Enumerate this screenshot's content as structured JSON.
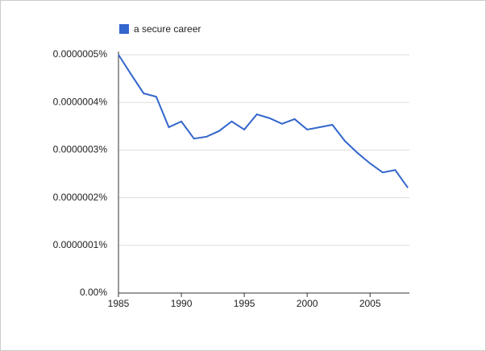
{
  "chart_data": {
    "type": "line",
    "x": [
      1985,
      1986,
      1987,
      1988,
      1989,
      1990,
      1991,
      1992,
      1993,
      1994,
      1995,
      1996,
      1997,
      1998,
      1999,
      2000,
      2001,
      2002,
      2003,
      2004,
      2005,
      2006,
      2007,
      2008
    ],
    "series": [
      {
        "name": "a secure career",
        "color": "#3366cc",
        "values": [
          5e-07,
          4.59e-07,
          4.19e-07,
          4.12e-07,
          3.48e-07,
          3.6e-07,
          3.24e-07,
          3.28e-07,
          3.4e-07,
          3.6e-07,
          3.43e-07,
          3.75e-07,
          3.67e-07,
          3.55e-07,
          3.65e-07,
          3.43e-07,
          3.48e-07,
          3.53e-07,
          3.19e-07,
          2.94e-07,
          2.72e-07,
          2.53e-07,
          2.58e-07,
          2.21e-07
        ]
      }
    ],
    "xlim": [
      1985,
      2008
    ],
    "xticks": [
      1985,
      1990,
      1995,
      2000,
      2005
    ],
    "ylim": [
      0,
      5e-07
    ],
    "yticks": [
      {
        "value": 0,
        "label": "0.00%"
      },
      {
        "value": 1e-07,
        "label": "0.0000001%"
      },
      {
        "value": 2e-07,
        "label": "0.0000002%"
      },
      {
        "value": 3e-07,
        "label": "0.0000003%"
      },
      {
        "value": 4e-07,
        "label": "0.0000004%"
      },
      {
        "value": 5e-07,
        "label": "0.0000005%"
      }
    ],
    "grid": true,
    "legend": "top"
  }
}
